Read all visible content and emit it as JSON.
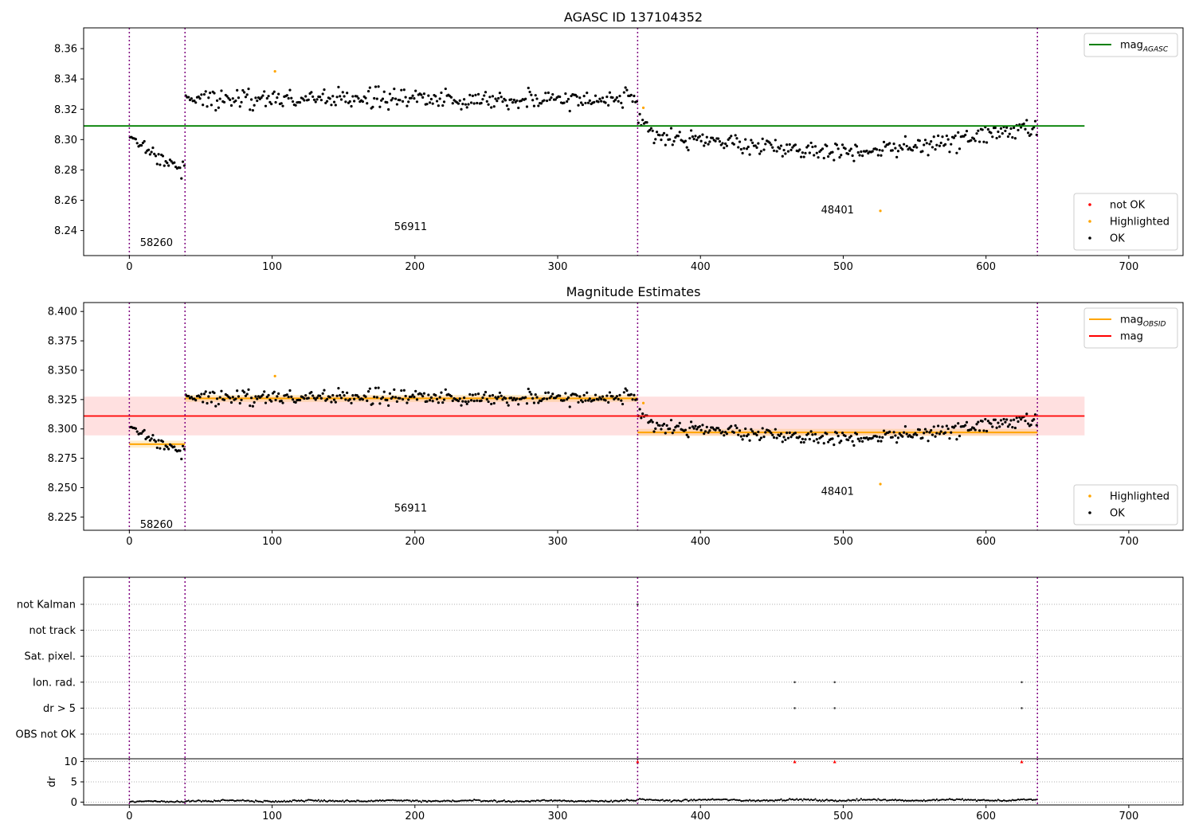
{
  "chart_data": [
    {
      "type": "scatter",
      "title": "AGASC ID 137104352",
      "xlim": [
        -32,
        738
      ],
      "ylim": [
        8.2235,
        8.3737
      ],
      "xticks": [
        0,
        100,
        200,
        300,
        400,
        500,
        600,
        700
      ],
      "yticks": [
        8.24,
        8.26,
        8.28,
        8.3,
        8.32,
        8.34,
        8.36
      ],
      "ytick_decimals": 2,
      "obs_boundaries": [
        0,
        39,
        356,
        636
      ],
      "annotations": [
        {
          "text": "58260",
          "x": 19,
          "y": 8.232
        },
        {
          "text": "56911",
          "x": 197,
          "y": 8.2425
        },
        {
          "text": "48401",
          "x": 496,
          "y": 8.2535
        }
      ],
      "lines": [
        {
          "name": "magAGASC",
          "name_main": "mag",
          "name_sub": "AGASC",
          "y": 8.309,
          "x0": -32,
          "x1": 669,
          "color": "#008000"
        }
      ],
      "obs_segments": [
        {
          "x0": 0,
          "x1": 39,
          "pattern": "decline",
          "y_start": 8.3,
          "y_end": 8.28,
          "noise": 0.0045
        },
        {
          "x0": 39,
          "x1": 356,
          "pattern": "flat",
          "level": 8.327,
          "noise": 0.0055
        },
        {
          "x0": 356,
          "x1": 636,
          "pattern": "wave",
          "level": 8.297,
          "noise": 0.005
        }
      ],
      "highlighted_points": [
        {
          "x": 102,
          "y": 8.345
        },
        {
          "x": 360,
          "y": 8.321
        },
        {
          "x": 526,
          "y": 8.253
        }
      ],
      "legends": [
        {
          "position": "top-right",
          "entries": [
            {
              "label": "magAGASC",
              "label_main": "mag",
              "label_sub": "AGASC",
              "kind": "line",
              "color": "#008000"
            }
          ]
        },
        {
          "position": "bottom-right",
          "entries": [
            {
              "label": "not OK",
              "kind": "marker",
              "color": "#ff0000"
            },
            {
              "label": "Highlighted",
              "kind": "marker",
              "color": "#ffa500"
            },
            {
              "label": "OK",
              "kind": "marker",
              "color": "#000000"
            }
          ]
        }
      ]
    },
    {
      "type": "scatter",
      "title": "Magnitude Estimates",
      "xlim": [
        -32,
        738
      ],
      "ylim": [
        8.2137,
        8.4076
      ],
      "xticks": [
        0,
        100,
        200,
        300,
        400,
        500,
        600,
        700
      ],
      "yticks": [
        8.225,
        8.25,
        8.275,
        8.3,
        8.325,
        8.35,
        8.375,
        8.4
      ],
      "ytick_decimals": 3,
      "obs_boundaries": [
        0,
        39,
        356,
        636
      ],
      "annotations": [
        {
          "text": "58260",
          "x": 19,
          "y": 8.2185
        },
        {
          "text": "56911",
          "x": 197,
          "y": 8.2325
        },
        {
          "text": "48401",
          "x": 496,
          "y": 8.2465
        }
      ],
      "band": {
        "y0": 8.2945,
        "y1": 8.3275,
        "x0": -32,
        "x1": 669,
        "color": "#ff0000",
        "opacity": 0.12
      },
      "lines": [
        {
          "name": "mag",
          "y": 8.311,
          "x0": -32,
          "x1": 669,
          "color": "#ff0000"
        }
      ],
      "obs_levels": [
        {
          "x0": 0,
          "x1": 39,
          "y": 8.287,
          "err": 0.003
        },
        {
          "x0": 39,
          "x1": 356,
          "y": 8.326,
          "err": 0.003
        },
        {
          "x0": 356,
          "x1": 636,
          "y": 8.297,
          "err": 0.003
        }
      ],
      "obs_segments": [
        {
          "x0": 0,
          "x1": 39,
          "pattern": "decline",
          "y_start": 8.3,
          "y_end": 8.28,
          "noise": 0.0045
        },
        {
          "x0": 39,
          "x1": 356,
          "pattern": "flat",
          "level": 8.327,
          "noise": 0.0055
        },
        {
          "x0": 356,
          "x1": 636,
          "pattern": "wave",
          "level": 8.297,
          "noise": 0.005
        }
      ],
      "highlighted_points": [
        {
          "x": 102,
          "y": 8.345
        },
        {
          "x": 360,
          "y": 8.322
        },
        {
          "x": 526,
          "y": 8.253
        }
      ],
      "legends": [
        {
          "position": "top-right",
          "entries": [
            {
              "label": "magOBSID",
              "label_main": "mag",
              "label_sub": "OBSID",
              "kind": "line",
              "color": "#ffa500"
            },
            {
              "label": "mag",
              "kind": "line",
              "color": "#ff0000"
            }
          ]
        },
        {
          "position": "bottom-right",
          "entries": [
            {
              "label": "Highlighted",
              "kind": "marker",
              "color": "#ffa500"
            },
            {
              "label": "OK",
              "kind": "marker",
              "color": "#000000"
            }
          ]
        }
      ]
    },
    {
      "type": "scatter",
      "title": "",
      "xlim": [
        -32,
        738
      ],
      "xticks": [
        0,
        100,
        200,
        300,
        400,
        500,
        600,
        700
      ],
      "obs_boundaries": [
        0,
        39,
        356,
        636
      ],
      "flag_categories": [
        "not Kalman",
        "not track",
        "Sat. pixel.",
        "Ion. rad.",
        "dr > 5",
        "OBS not OK"
      ],
      "flag_points": [
        {
          "category": "not Kalman",
          "x": 356
        },
        {
          "category": "Ion. rad.",
          "x": 466
        },
        {
          "category": "Ion. rad.",
          "x": 494
        },
        {
          "category": "Ion. rad.",
          "x": 625
        },
        {
          "category": "dr > 5",
          "x": 466
        },
        {
          "category": "dr > 5",
          "x": 494
        },
        {
          "category": "dr > 5",
          "x": 625
        }
      ],
      "dr": {
        "ylabel": "dr",
        "ylim": [
          -0.7,
          10.7
        ],
        "yticks": [
          0,
          5,
          10
        ],
        "clip_value": 10,
        "clipped_points": [
          {
            "x": 356,
            "y": 10
          },
          {
            "x": 466,
            "y": 10
          },
          {
            "x": 494,
            "y": 10
          },
          {
            "x": 625,
            "y": 10
          }
        ],
        "series_profile": [
          {
            "x0": 0,
            "x1": 39,
            "level": 0.1
          },
          {
            "x0": 39,
            "x1": 356,
            "level": 0.3
          },
          {
            "x0": 356,
            "x1": 636,
            "level": 0.5
          }
        ]
      }
    }
  ],
  "colors": {
    "ok": "#000000",
    "highlighted": "#ffa500",
    "not_ok": "#ff0000",
    "boundary": "#800080",
    "grid": "#b0b0b0"
  }
}
